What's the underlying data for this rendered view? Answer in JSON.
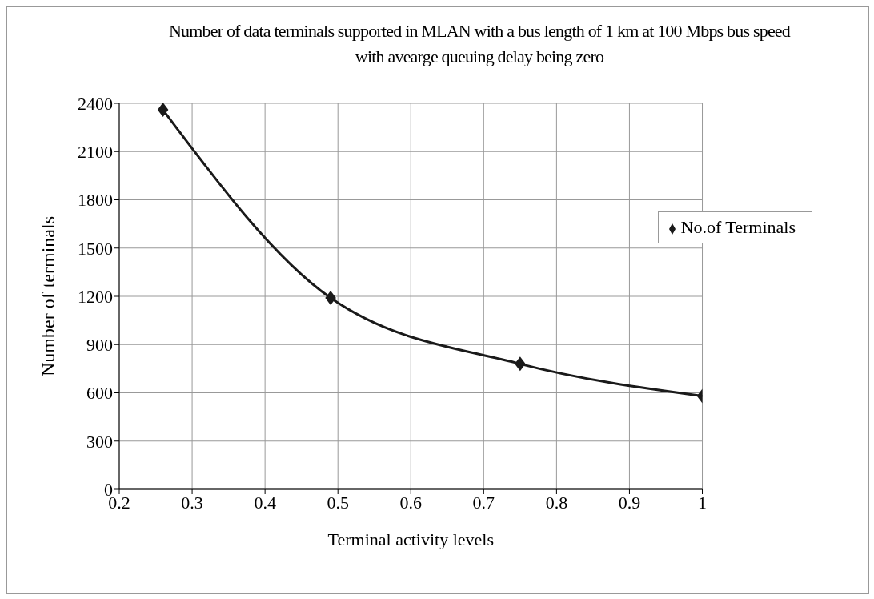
{
  "chart_data": {
    "type": "line",
    "title": "Number of data terminals supported in MLAN with a bus length of 1 km at 100 Mbps bus speed with avearge queuing delay being zero",
    "xlabel": "Terminal activity levels",
    "ylabel": "Number of terminals",
    "x": [
      0.26,
      0.49,
      0.75,
      1.0
    ],
    "series": [
      {
        "name": "No.of Terminals",
        "color": "#1a1a1a",
        "values": [
          2360,
          1190,
          780,
          580
        ]
      }
    ],
    "xlim": [
      0.2,
      1
    ],
    "xticks": [
      0.2,
      0.3,
      0.4,
      0.5,
      0.6,
      0.7,
      0.8,
      0.9,
      1
    ],
    "ylim": [
      0,
      2400
    ],
    "yticks": [
      0,
      300,
      600,
      900,
      1200,
      1500,
      1800,
      2100,
      2400
    ],
    "grid": true,
    "legend": "right",
    "marker": "diamond",
    "line_style": "solid"
  }
}
